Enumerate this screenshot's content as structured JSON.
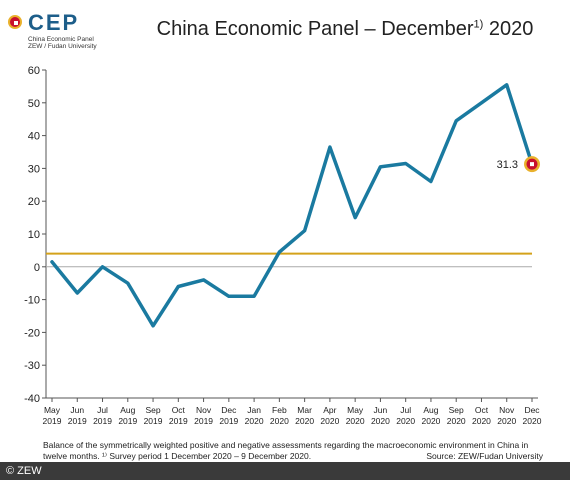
{
  "logo": {
    "name": "CEP",
    "line1": "China Economic Panel",
    "line2": "ZEW / Fudan University"
  },
  "title": {
    "main": "China Economic Panel – December",
    "sup": "1)",
    "year": " 2020"
  },
  "footnote": {
    "line1": "Balance of the symmetrically weighted positive and negative assessments regarding the macroeconomic environment in China in",
    "line2": "twelve months. ¹⁾ Survey period 1 December 2020 – 9 December 2020.",
    "source": "Source: ZEW/Fudan University"
  },
  "copyright": "© ZEW",
  "colors": {
    "line": "#1a7aa0",
    "reference": "#d4a21a",
    "zero": "#aaaaaa",
    "marker_fill": "#c8102e",
    "marker_ring": "#e9b12c"
  },
  "chart_data": {
    "type": "line",
    "ylim": [
      -40,
      60
    ],
    "yticks": [
      60,
      50,
      40,
      30,
      20,
      10,
      0,
      -10,
      -20,
      -30,
      -40
    ],
    "categories": [
      [
        "May",
        "2019"
      ],
      [
        "Jun",
        "2019"
      ],
      [
        "Jul",
        "2019"
      ],
      [
        "Aug",
        "2019"
      ],
      [
        "Sep",
        "2019"
      ],
      [
        "Oct",
        "2019"
      ],
      [
        "Nov",
        "2019"
      ],
      [
        "Dec",
        "2019"
      ],
      [
        "Jan",
        "2020"
      ],
      [
        "Feb",
        "2020"
      ],
      [
        "Mar",
        "2020"
      ],
      [
        "Apr",
        "2020"
      ],
      [
        "May",
        "2020"
      ],
      [
        "Jun",
        "2020"
      ],
      [
        "Jul",
        "2020"
      ],
      [
        "Aug",
        "2020"
      ],
      [
        "Sep",
        "2020"
      ],
      [
        "Oct",
        "2020"
      ],
      [
        "Nov",
        "2020"
      ],
      [
        "Dec",
        "2020"
      ]
    ],
    "values": [
      1.5,
      -8,
      0,
      -5,
      -18,
      -6,
      -4,
      -9,
      -9,
      4.5,
      11,
      36.5,
      15,
      30.5,
      31.5,
      26,
      44.5,
      50,
      55.5,
      31.3
    ],
    "reference_value": 4,
    "annotation": {
      "label": "31.3",
      "index": 19
    },
    "grid": false
  }
}
